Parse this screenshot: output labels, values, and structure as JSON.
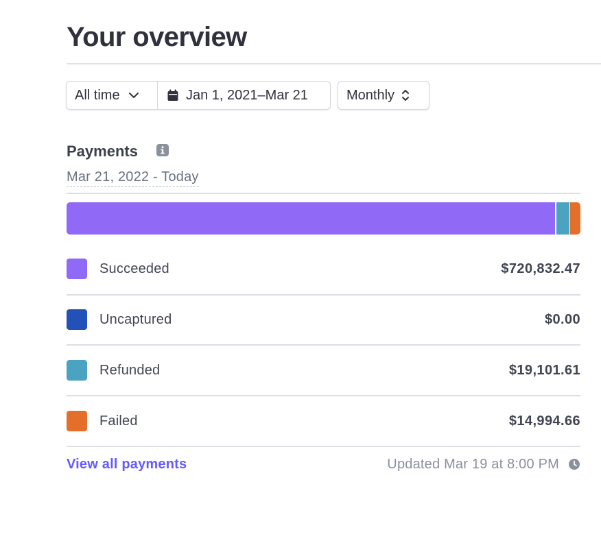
{
  "header": {
    "title": "Your overview"
  },
  "filters": {
    "range_preset": "All time",
    "date_range": "Jan 1, 2021–Mar 21",
    "interval": "Monthly"
  },
  "payments": {
    "title": "Payments",
    "period": "Mar 21, 2022 - Today",
    "items": [
      {
        "label": "Succeeded",
        "value": "$720,832.47",
        "amount": 720832.47,
        "color": "#9169f7"
      },
      {
        "label": "Uncaptured",
        "value": "$0.00",
        "amount": 0,
        "color": "#2251b8"
      },
      {
        "label": "Refunded",
        "value": "$19,101.61",
        "amount": 19101.61,
        "color": "#4aa3c1"
      },
      {
        "label": "Failed",
        "value": "$14,994.66",
        "amount": 14994.66,
        "color": "#e46f2a"
      }
    ],
    "view_all": "View all payments",
    "updated": "Updated Mar 19 at 8:00 PM"
  },
  "icons": {
    "range_chevron": "chevron-down-icon",
    "calendar": "calendar-icon",
    "interval_toggle": "up-down-chevron-icon",
    "info": "info-icon",
    "clock": "clock-icon"
  }
}
